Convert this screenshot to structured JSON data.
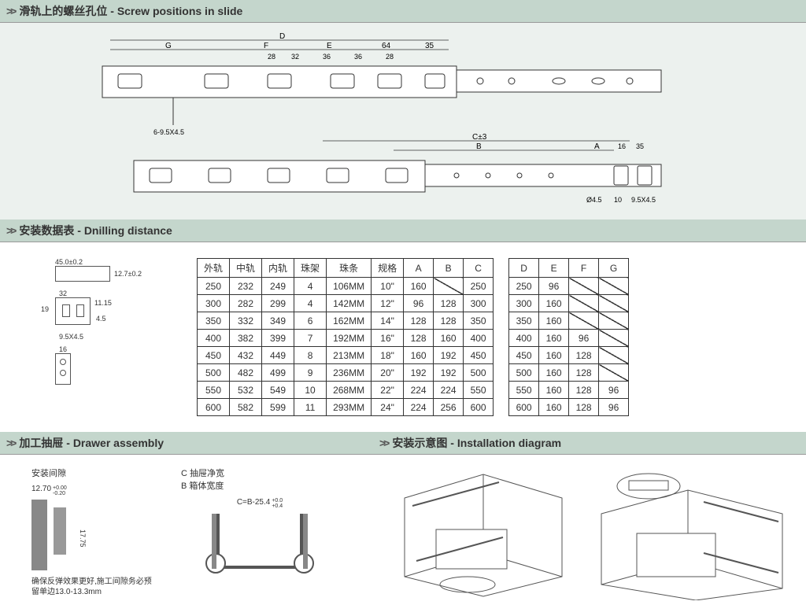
{
  "sections": {
    "screw_positions": {
      "zh": "滑轨上的螺丝孔位",
      "en": "Screw positions in slide"
    },
    "drilling": {
      "zh": "安装数据表",
      "en": "Dnilling distance"
    },
    "assembly": {
      "zh": "加工抽屉",
      "en": "Drawer assembly"
    },
    "installation": {
      "zh": "安装示意图",
      "en": "Installation diagram"
    }
  },
  "top_diagram": {
    "dim_labels_upper": [
      "D",
      "G",
      "F",
      "E",
      "64",
      "35"
    ],
    "dim_labels_upper_sub": [
      "28",
      "32",
      "36",
      "36",
      "28"
    ],
    "dim_labels_lower": [
      "C±3",
      "B",
      "A",
      "16",
      "35"
    ],
    "lower_left_note": "6-9.5X4.5",
    "lower_right_notes": [
      "Ø4.5",
      "10",
      "9.5X4.5"
    ]
  },
  "drill_diagrams": {
    "a_left": "45.0±0.2",
    "a_right": "12.7±0.2",
    "b_top": "32",
    "b_right1": "11.15",
    "b_left": "19",
    "b_bottom": "9.5X4.5",
    "b_under": "4.5",
    "c_top": "16"
  },
  "table": {
    "headers": [
      "外轨",
      "中轨",
      "内轨",
      "珠架",
      "珠条",
      "规格",
      "A",
      "B",
      "C",
      "",
      "D",
      "E",
      "F",
      "G"
    ],
    "rows": [
      [
        "250",
        "232",
        "249",
        "4",
        "106MM",
        "10\"",
        "160",
        "DIAG",
        "250",
        "",
        "250",
        "96",
        "DIAG",
        "DIAG"
      ],
      [
        "300",
        "282",
        "299",
        "4",
        "142MM",
        "12\"",
        "96",
        "128",
        "300",
        "",
        "300",
        "160",
        "DIAG",
        "DIAG"
      ],
      [
        "350",
        "332",
        "349",
        "6",
        "162MM",
        "14\"",
        "128",
        "128",
        "350",
        "",
        "350",
        "160",
        "DIAG",
        "DIAG"
      ],
      [
        "400",
        "382",
        "399",
        "7",
        "192MM",
        "16\"",
        "128",
        "160",
        "400",
        "",
        "400",
        "160",
        "96",
        "DIAG"
      ],
      [
        "450",
        "432",
        "449",
        "8",
        "213MM",
        "18\"",
        "160",
        "192",
        "450",
        "",
        "450",
        "160",
        "128",
        "DIAG"
      ],
      [
        "500",
        "482",
        "499",
        "9",
        "236MM",
        "20\"",
        "192",
        "192",
        "500",
        "",
        "500",
        "160",
        "128",
        "DIAG"
      ],
      [
        "550",
        "532",
        "549",
        "10",
        "268MM",
        "22\"",
        "224",
        "224",
        "550",
        "",
        "550",
        "160",
        "128",
        "96"
      ],
      [
        "600",
        "582",
        "599",
        "11",
        "293MM",
        "24\"",
        "224",
        "256",
        "600",
        "",
        "600",
        "160",
        "128",
        "96"
      ]
    ]
  },
  "assembly": {
    "gap_label": "安装间隙",
    "legend_c": "C  抽屉净宽",
    "legend_b": "B  箱体宽度",
    "dim_1270": "12.70",
    "dim_1270_tol": "+0.00\n-0.20",
    "dim_1775": "17.75",
    "formula": "C=B-25.4",
    "formula_tol": "+0.0\n+0.4",
    "note": "确保反弹效果更好,施工间隙务必预留单边13.0-13.3mm"
  },
  "colors": {
    "header_bg": "#c4d6cc",
    "diagram_bg": "#ecf1ee",
    "line": "#555555",
    "text": "#333333"
  }
}
